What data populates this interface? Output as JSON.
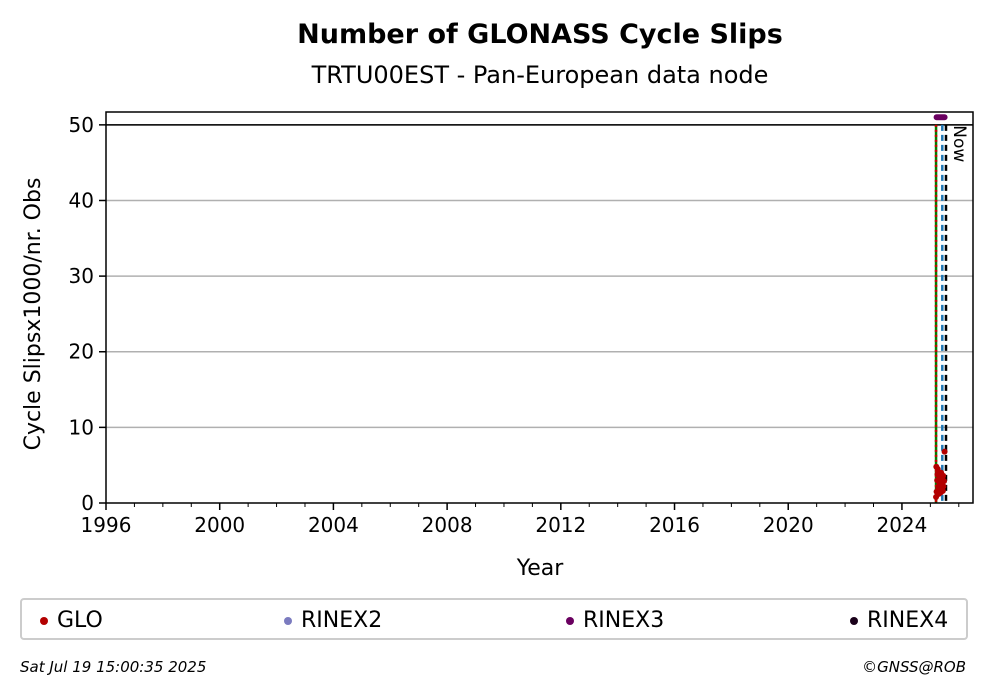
{
  "chart_data": {
    "type": "scatter",
    "title": "Number of GLONASS Cycle Slips",
    "subtitle": "TRTU00EST - Pan-European data node",
    "xlabel": "Year",
    "ylabel": "Cycle Slipsx1000/nr. Obs",
    "xlim": [
      1996,
      2026.5
    ],
    "ylim": [
      0,
      51.7
    ],
    "xticks": [
      1996,
      2000,
      2004,
      2008,
      2012,
      2016,
      2020,
      2024
    ],
    "yticks": [
      0,
      10,
      20,
      30,
      40,
      50
    ],
    "grid": "horizontal",
    "reference_line": 50,
    "now_label": "Now",
    "now_x": 2025.55,
    "series": [
      {
        "name": "GLO",
        "color": "#b30000",
        "x": [
          2025.2,
          2025.22,
          2025.24,
          2025.26,
          2025.28,
          2025.3,
          2025.32,
          2025.34,
          2025.36,
          2025.38,
          2025.4,
          2025.42,
          2025.44,
          2025.46,
          2025.48,
          2025.5,
          2025.21,
          2025.25,
          2025.31,
          2025.37,
          2025.45
        ],
        "y": [
          0.8,
          1.5,
          3.0,
          4.5,
          2.0,
          1.2,
          3.5,
          2.8,
          1.8,
          4.0,
          2.5,
          3.2,
          1.6,
          2.2,
          2.9,
          6.8,
          4.8,
          3.8,
          2.4,
          1.4,
          3.6
        ]
      },
      {
        "name": "RINEX2",
        "color": "#7b7bbf",
        "x": [],
        "y": []
      },
      {
        "name": "RINEX3",
        "color": "#6a0060",
        "x": [
          2025.22,
          2025.26,
          2025.3,
          2025.34,
          2025.38,
          2025.42,
          2025.46,
          2025.5
        ],
        "y": [
          51,
          51,
          51,
          51,
          51,
          51,
          51,
          51
        ]
      },
      {
        "name": "RINEX4",
        "color": "#1a001a",
        "x": [],
        "y": []
      }
    ],
    "vertical_lines": [
      {
        "x": 2025.2,
        "color": "#008000",
        "style": "solid"
      },
      {
        "x": 2025.2,
        "color": "#cc0000",
        "style": "dotted"
      },
      {
        "x": 2025.42,
        "color": "#1f77b4",
        "style": "dashed"
      },
      {
        "x": 2025.55,
        "color": "#000000",
        "style": "dashed"
      }
    ]
  },
  "legend": {
    "items": [
      {
        "label": "GLO",
        "color": "#b30000"
      },
      {
        "label": "RINEX2",
        "color": "#7b7bbf"
      },
      {
        "label": "RINEX3",
        "color": "#6a0060"
      },
      {
        "label": "RINEX4",
        "color": "#1a001a"
      }
    ]
  },
  "footer": {
    "timestamp": "Sat Jul 19 15:00:35 2025",
    "copyright": "©GNSS@ROB"
  }
}
